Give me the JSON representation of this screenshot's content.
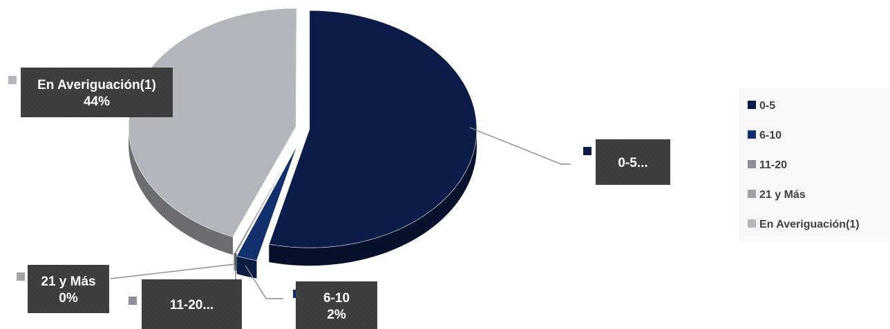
{
  "chart_data": {
    "type": "pie",
    "title": "",
    "categories": [
      "0-5",
      "6-10",
      "11-20",
      "21 y Más",
      "En Averiguación(1)"
    ],
    "values": [
      54,
      2,
      0.2,
      0,
      44
    ],
    "colors": [
      "#0b1c49",
      "#13306e",
      "#8e8e96",
      "#a2a2a8",
      "#b5b6bb"
    ],
    "data_labels": [
      {
        "lines": [
          "0-5..."
        ]
      },
      {
        "lines": [
          "6-10",
          "2%"
        ]
      },
      {
        "lines": [
          "11-20..."
        ]
      },
      {
        "lines": [
          "21 y Más",
          "0%"
        ]
      },
      {
        "lines": [
          "En Averiguación(1)",
          "44%"
        ]
      }
    ],
    "legend": {
      "position": "right",
      "entries": [
        "0-5",
        "6-10",
        "11-20",
        "21 y Más",
        "En Averiguación(1)"
      ]
    }
  }
}
